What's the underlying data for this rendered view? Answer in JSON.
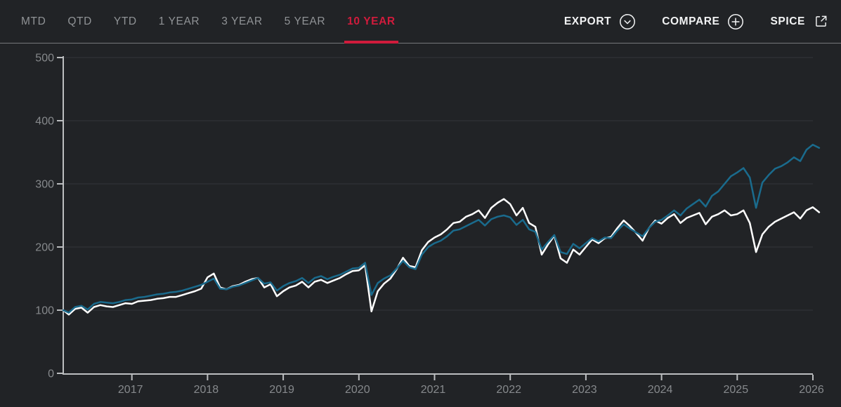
{
  "toolbar": {
    "tabs": [
      {
        "label": "MTD",
        "active": false
      },
      {
        "label": "QTD",
        "active": false
      },
      {
        "label": "YTD",
        "active": false
      },
      {
        "label": "1 YEAR",
        "active": false
      },
      {
        "label": "3 YEAR",
        "active": false
      },
      {
        "label": "5 YEAR",
        "active": false
      },
      {
        "label": "10 YEAR",
        "active": true
      }
    ],
    "actions": [
      {
        "label": "EXPORT",
        "icon": "chevron-down-circle-icon"
      },
      {
        "label": "COMPARE",
        "icon": "plus-circle-icon"
      },
      {
        "label": "SPICE",
        "icon": "external-link-icon"
      }
    ]
  },
  "colors": {
    "background": "#212326",
    "accent_red": "#d01b3c",
    "series_teal": "#1a6b8d",
    "series_white": "#ffffff",
    "grid": "#333639",
    "axis": "#bcbec0",
    "tick_label": "#86898c",
    "tab_inactive": "#909396",
    "action_text": "#f2f3f4"
  },
  "chart_data": {
    "type": "line",
    "title": "",
    "xlabel": "",
    "ylabel": "",
    "legend_position": "none",
    "grid": "horizontal",
    "x_start": 2016.083,
    "x_step": 0.08333,
    "x_axis": {
      "ticks": [
        2017,
        2018,
        2019,
        2020,
        2021,
        2022,
        2023,
        2024,
        2025,
        2026
      ],
      "range": [
        2016.08,
        2026.1
      ]
    },
    "y_axis": {
      "ticks": [
        0,
        100,
        200,
        300,
        400,
        500
      ],
      "range": [
        0,
        500
      ]
    },
    "series": [
      {
        "name": "series-white",
        "color": "#ffffff",
        "values": [
          100,
          93,
          102,
          104,
          96,
          105,
          108,
          106,
          105,
          108,
          111,
          110,
          114,
          115,
          116,
          118,
          119,
          121,
          121,
          124,
          127,
          130,
          134,
          152,
          158,
          136,
          133,
          138,
          140,
          145,
          149,
          151,
          136,
          141,
          122,
          130,
          136,
          139,
          145,
          136,
          145,
          148,
          143,
          147,
          151,
          157,
          162,
          163,
          171,
          98,
          130,
          142,
          150,
          165,
          183,
          170,
          168,
          195,
          208,
          215,
          220,
          228,
          238,
          240,
          248,
          252,
          258,
          246,
          262,
          270,
          276,
          268,
          250,
          262,
          238,
          232,
          188,
          204,
          218,
          182,
          175,
          196,
          188,
          200,
          212,
          206,
          214,
          216,
          230,
          242,
          233,
          222,
          210,
          230,
          242,
          237,
          246,
          252,
          238,
          246,
          250,
          254,
          236,
          248,
          252,
          258,
          250,
          252,
          258,
          238,
          192,
          220,
          232,
          240,
          245,
          250,
          255,
          245,
          258,
          263,
          255
        ]
      },
      {
        "name": "series-teal",
        "color": "#1a6b8d",
        "values": [
          100,
          96,
          105,
          107,
          101,
          110,
          113,
          112,
          111,
          113,
          116,
          117,
          120,
          121,
          123,
          125,
          126,
          128,
          129,
          131,
          134,
          137,
          140,
          145,
          150,
          134,
          133,
          137,
          139,
          143,
          147,
          151,
          142,
          144,
          131,
          138,
          143,
          146,
          151,
          143,
          151,
          154,
          149,
          153,
          156,
          161,
          166,
          167,
          175,
          124,
          143,
          150,
          155,
          166,
          178,
          168,
          165,
          188,
          200,
          206,
          210,
          217,
          226,
          228,
          233,
          238,
          243,
          234,
          244,
          248,
          250,
          247,
          235,
          243,
          228,
          224,
          196,
          208,
          219,
          192,
          189,
          205,
          198,
          206,
          214,
          209,
          215,
          214,
          226,
          236,
          229,
          223,
          217,
          230,
          240,
          243,
          250,
          258,
          250,
          261,
          268,
          275,
          264,
          281,
          288,
          300,
          312,
          318,
          325,
          310,
          262,
          302,
          314,
          324,
          328,
          334,
          342,
          336,
          354,
          362,
          357
        ]
      }
    ]
  }
}
